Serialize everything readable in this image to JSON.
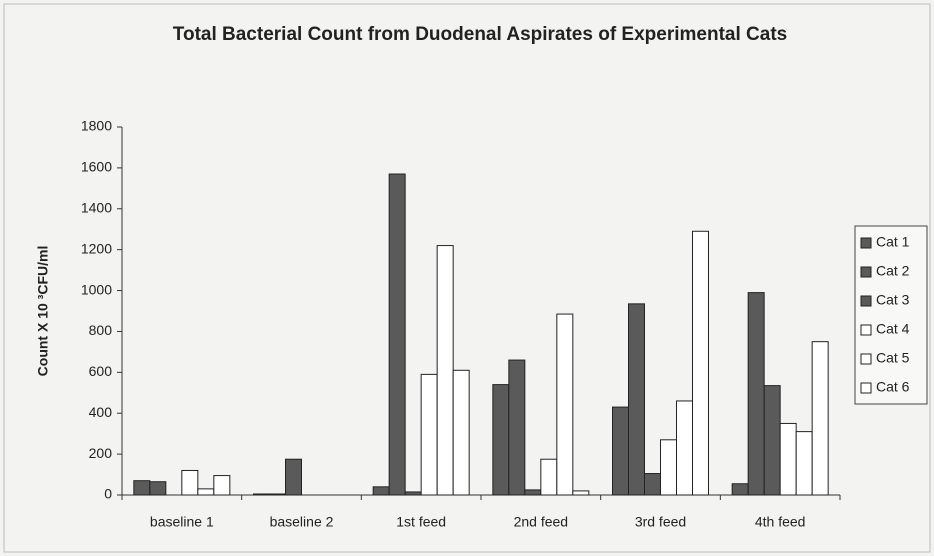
{
  "chart_data": {
    "type": "bar",
    "title": "Total Bacterial Count from Duodenal Aspirates of Experimental Cats",
    "ylabel": "Count X 10 ³CFU/ml",
    "categories": [
      "baseline 1",
      "baseline 2",
      "1st feed",
      "2nd feed",
      "3rd feed",
      "4th feed"
    ],
    "series": [
      {
        "name": "Cat 1",
        "color": "#5a5a5a",
        "values": [
          70,
          5,
          40,
          540,
          430,
          55
        ]
      },
      {
        "name": "Cat 2",
        "color": "#5a5a5a",
        "values": [
          65,
          5,
          1570,
          660,
          935,
          990
        ]
      },
      {
        "name": "Cat 3",
        "color": "#5a5a5a",
        "values": [
          0,
          175,
          15,
          25,
          105,
          535
        ]
      },
      {
        "name": "Cat 4",
        "color": "#ffffff",
        "values": [
          120,
          0,
          590,
          175,
          270,
          350
        ]
      },
      {
        "name": "Cat 5",
        "color": "#ffffff",
        "values": [
          30,
          0,
          1220,
          885,
          460,
          310
        ]
      },
      {
        "name": "Cat 6",
        "color": "#ffffff",
        "values": [
          95,
          0,
          610,
          20,
          1290,
          750
        ]
      }
    ],
    "ylim": [
      0,
      1800
    ],
    "yticks": [
      0,
      200,
      400,
      600,
      800,
      1000,
      1200,
      1400,
      1600,
      1800
    ],
    "legend": "right"
  }
}
